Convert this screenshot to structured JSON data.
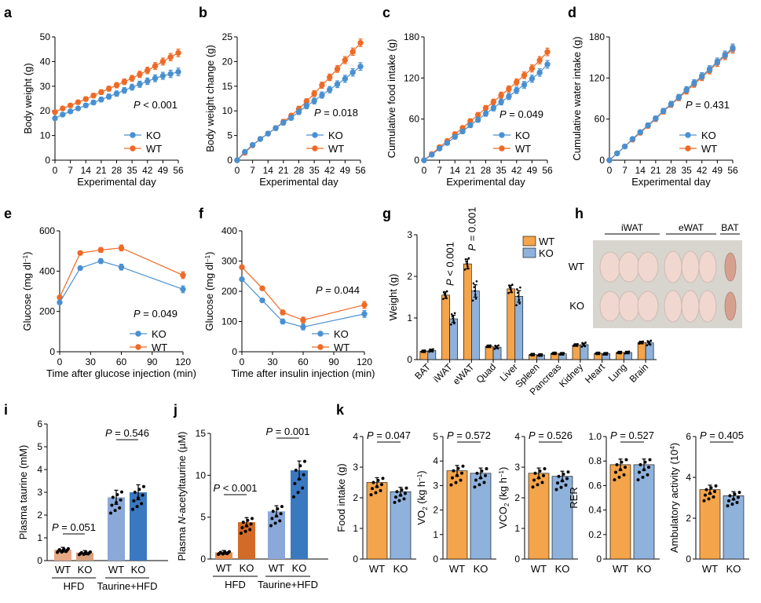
{
  "colors": {
    "ko": "#4a90d0",
    "wt": "#ee6a26",
    "wt_bar": "#f4a44a",
    "ko_bar": "#8fb2dc",
    "hfd_wt": "#e8a986",
    "hfd_ko": "#d9a07d",
    "tau_wt": "#8aa8d8",
    "tau_ko": "#3a78c0",
    "nacet_wt": "#e88c4a",
    "nacet_ko": "#d26a28",
    "photo_bg": "#d8d5cf",
    "tissue": "#f0d7d0",
    "bat": "#d6a08f"
  },
  "legend": {
    "ko": "KO",
    "wt": "WT"
  },
  "chart_data": [
    {
      "id": "a",
      "panel_label": "a",
      "type": "line",
      "xlabel": "Experimental day",
      "ylabel": "Body weight (g)",
      "ylim": [
        0,
        50
      ],
      "yticks": [
        "0",
        "10",
        "20",
        "30",
        "40",
        "50"
      ],
      "xticks": [
        "0",
        "7",
        "14",
        "21",
        "28",
        "35",
        "42",
        "49",
        "56"
      ],
      "xlim": [
        0,
        56
      ],
      "p_prefix": "P",
      "p_rest": " < 0.001",
      "x": [
        0,
        3.5,
        7,
        10.5,
        14,
        17.5,
        21,
        24.5,
        28,
        31.5,
        35,
        38.5,
        42,
        45.5,
        49,
        52.5,
        56
      ],
      "series": [
        {
          "name": "KO",
          "values": [
            17,
            18.5,
            19.8,
            21,
            22.2,
            23.4,
            24.6,
            25.8,
            27,
            28.3,
            29.6,
            30.8,
            32,
            33.2,
            34.2,
            35,
            35.8
          ]
        },
        {
          "name": "WT",
          "values": [
            19.5,
            21,
            22.2,
            23.5,
            24.8,
            26.2,
            27.6,
            29,
            30.4,
            31.8,
            33.2,
            34.8,
            36.4,
            38.2,
            40,
            41.8,
            43.5
          ]
        }
      ]
    },
    {
      "id": "b",
      "panel_label": "b",
      "type": "line",
      "xlabel": "Experimental day",
      "ylabel": "Body weight change (g)",
      "ylim": [
        0,
        25
      ],
      "yticks": [
        "0",
        "5",
        "10",
        "15",
        "20",
        "25"
      ],
      "xticks": [
        "0",
        "7",
        "14",
        "21",
        "28",
        "35",
        "42",
        "49",
        "56"
      ],
      "xlim": [
        0,
        56
      ],
      "p_prefix": "P",
      "p_rest": " = 0.018",
      "x": [
        0,
        3.5,
        7,
        10.5,
        14,
        17.5,
        21,
        24.5,
        28,
        31.5,
        35,
        38.5,
        42,
        45.5,
        49,
        52.5,
        56
      ],
      "series": [
        {
          "name": "KO",
          "values": [
            0,
            1.7,
            3.1,
            4.3,
            5.4,
            6.5,
            7.6,
            8.6,
            9.8,
            11,
            12,
            13.2,
            14.3,
            15.4,
            16.5,
            17.8,
            19
          ]
        },
        {
          "name": "WT",
          "values": [
            0,
            1.5,
            3,
            4.3,
            5.4,
            6.5,
            7.8,
            9,
            10.4,
            11.9,
            13.5,
            15.2,
            16.8,
            18.5,
            20.3,
            22,
            23.8
          ]
        }
      ]
    },
    {
      "id": "c",
      "panel_label": "c",
      "type": "line",
      "xlabel": "Experimental day",
      "ylabel": "Cumulative food intake (g)",
      "ylim": [
        0,
        180
      ],
      "yticks": [
        "0",
        "60",
        "120",
        "180"
      ],
      "xticks": [
        "0",
        "7",
        "14",
        "21",
        "28",
        "35",
        "42",
        "49",
        "56"
      ],
      "xlim": [
        0,
        56
      ],
      "p_prefix": "P",
      "p_rest": " = 0.049",
      "x": [
        0,
        3.5,
        7,
        10.5,
        14,
        17.5,
        21,
        24.5,
        28,
        31.5,
        35,
        38.5,
        42,
        45.5,
        49,
        52.5,
        56
      ],
      "series": [
        {
          "name": "KO",
          "values": [
            0,
            8,
            17,
            25,
            34,
            42,
            51,
            59,
            68,
            76,
            85,
            93,
            102,
            110,
            119,
            128,
            140
          ]
        },
        {
          "name": "WT",
          "values": [
            0,
            9,
            19,
            28,
            38,
            47,
            57,
            66,
            76,
            85,
            95,
            104,
            114,
            124,
            134,
            146,
            158
          ]
        }
      ]
    },
    {
      "id": "d",
      "panel_label": "d",
      "type": "line",
      "xlabel": "Experimental day",
      "ylabel": "Cumulative water intake (g)",
      "ylim": [
        0,
        180
      ],
      "yticks": [
        "0",
        "60",
        "120",
        "180"
      ],
      "xticks": [
        "0",
        "7",
        "14",
        "21",
        "28",
        "35",
        "42",
        "49",
        "56"
      ],
      "xlim": [
        0,
        56
      ],
      "p_prefix": "P",
      "p_rest": " = 0.431",
      "x": [
        0,
        3.5,
        7,
        10.5,
        14,
        17.5,
        21,
        24.5,
        28,
        31.5,
        35,
        38.5,
        42,
        45.5,
        49,
        52.5,
        56
      ],
      "series": [
        {
          "name": "KO",
          "values": [
            0,
            10,
            20,
            31,
            41,
            51,
            61,
            72,
            82,
            92,
            103,
            113,
            123,
            133,
            144,
            154,
            164
          ]
        },
        {
          "name": "WT",
          "values": [
            0,
            10,
            20,
            30,
            40,
            50,
            60,
            71,
            81,
            91,
            101,
            111,
            121,
            131,
            142,
            152,
            162
          ]
        }
      ]
    },
    {
      "id": "e",
      "panel_label": "e",
      "type": "line",
      "xlabel": "Time after glucose injection (min)",
      "ylabel_pre": "Glucose (mg dl",
      "ylabel_sup": "−1",
      "ylabel_post": ")",
      "ylim": [
        0,
        600
      ],
      "yticks": [
        "0",
        "200",
        "400",
        "600"
      ],
      "xticks": [
        "0",
        "30",
        "60",
        "90",
        "120"
      ],
      "xlim": [
        0,
        120
      ],
      "p_prefix": "P",
      "p_rest": " = 0.049",
      "x": [
        0,
        20,
        40,
        60,
        120
      ],
      "series": [
        {
          "name": "KO",
          "values": [
            245,
            415,
            450,
            420,
            310
          ]
        },
        {
          "name": "WT",
          "values": [
            270,
            490,
            505,
            515,
            380
          ]
        }
      ]
    },
    {
      "id": "f",
      "panel_label": "f",
      "type": "line",
      "xlabel": "Time after insulin injection (min)",
      "ylabel_pre": "Glucose (mg dl",
      "ylabel_sup": "−1",
      "ylabel_post": ")",
      "ylim": [
        0,
        400
      ],
      "yticks": [
        "0",
        "100",
        "200",
        "300",
        "400"
      ],
      "xticks": [
        "0",
        "30",
        "60",
        "90",
        "120"
      ],
      "xlim": [
        0,
        120
      ],
      "p_prefix": "P",
      "p_rest": " = 0.044",
      "x": [
        0,
        20,
        40,
        60,
        120
      ],
      "series": [
        {
          "name": "KO",
          "values": [
            240,
            170,
            100,
            82,
            125
          ]
        },
        {
          "name": "WT",
          "values": [
            280,
            210,
            130,
            105,
            155
          ]
        }
      ]
    },
    {
      "id": "g",
      "panel_label": "g",
      "type": "bar",
      "ylabel": "Weight (g)",
      "ylim": [
        0,
        3
      ],
      "yticks": [
        "0",
        "1",
        "2",
        "3"
      ],
      "categories": [
        "BAT",
        "iWAT",
        "eWAT",
        "Quad",
        "Liver",
        "Spleen",
        "Pancreas",
        "Kidney",
        "Heart",
        "Lung",
        "Brain"
      ],
      "series": [
        {
          "name": "WT",
          "values": [
            0.2,
            1.55,
            2.3,
            0.32,
            1.7,
            0.12,
            0.15,
            0.35,
            0.15,
            0.17,
            0.41
          ]
        },
        {
          "name": "KO",
          "values": [
            0.22,
            0.98,
            1.65,
            0.3,
            1.52,
            0.11,
            0.14,
            0.36,
            0.14,
            0.17,
            0.4
          ]
        }
      ],
      "annotations": [
        {
          "category": "iWAT",
          "p_prefix": "P",
          "p_rest": " < 0.001"
        },
        {
          "category": "eWAT",
          "p_prefix": "P",
          "p_rest": " = 0.001"
        }
      ]
    },
    {
      "id": "i",
      "panel_label": "i",
      "type": "bar",
      "ylabel": "Plasma taurine (mM)",
      "ylim": [
        0,
        6
      ],
      "yticks": [
        "0",
        "1",
        "2",
        "3",
        "4",
        "5",
        "6"
      ],
      "categories": [
        "WT",
        "KO",
        "WT",
        "KO"
      ],
      "values": [
        0.48,
        0.35,
        2.78,
        3.0
      ],
      "group_labels": [
        "HFD",
        "Taurine+HFD"
      ],
      "annotations": [
        {
          "p_prefix": "P",
          "p_rest": " = 0.051"
        },
        {
          "p_prefix": "P",
          "p_rest": " = 0.546"
        }
      ]
    },
    {
      "id": "j",
      "panel_label": "j",
      "type": "bar",
      "ylabel_pre": "Plasma ",
      "ylabel_ital": "N",
      "ylabel_post": "-acetyltaurine (µM)",
      "ylim": [
        0,
        15
      ],
      "yticks": [
        "0",
        "5",
        "10",
        "15"
      ],
      "categories": [
        "WT",
        "KO",
        "WT",
        "KO"
      ],
      "values": [
        0.8,
        4.4,
        5.7,
        10.6
      ],
      "group_labels": [
        "HFD",
        "Taurine+HFD"
      ],
      "annotations": [
        {
          "p_prefix": "P",
          "p_rest": " < 0.001"
        },
        {
          "p_prefix": "P",
          "p_rest": " = 0.001"
        }
      ]
    },
    {
      "id": "k1",
      "panel_label": "k",
      "type": "bar",
      "ylabel": "Food intake (g)",
      "ylim": [
        0,
        4
      ],
      "yticks": [
        "0",
        "1",
        "2",
        "3",
        "4"
      ],
      "categories": [
        "WT",
        "KO"
      ],
      "values": [
        2.5,
        2.2
      ],
      "p_prefix": "P",
      "p_rest": " = 0.047"
    },
    {
      "id": "k2",
      "type": "bar",
      "ylabel_pre": "VO",
      "ylabel_sub": "2",
      "ylabel_post": " (kg h",
      "ylabel_sup": "−1",
      "ylabel_end": ")",
      "ylim": [
        0,
        5
      ],
      "yticks": [
        "0",
        "1",
        "2",
        "3",
        "4",
        "5"
      ],
      "categories": [
        "WT",
        "KO"
      ],
      "values": [
        3.6,
        3.5
      ],
      "p_prefix": "P",
      "p_rest": " = 0.572"
    },
    {
      "id": "k3",
      "type": "bar",
      "ylabel_pre": "VCO",
      "ylabel_sub": "2",
      "ylabel_post": " (kg h",
      "ylabel_sup": "−1",
      "ylabel_end": ")",
      "ylim": [
        0,
        4
      ],
      "yticks": [
        "0",
        "1",
        "2",
        "3",
        "4"
      ],
      "categories": [
        "WT",
        "KO"
      ],
      "values": [
        2.8,
        2.7
      ],
      "p_prefix": "P",
      "p_rest": " = 0.526"
    },
    {
      "id": "k4",
      "type": "bar",
      "ylabel": "RER",
      "ylim": [
        0,
        1.0
      ],
      "yticks": [
        "0",
        "0.2",
        "0.4",
        "0.6",
        "0.8",
        "1.0"
      ],
      "categories": [
        "WT",
        "KO"
      ],
      "values": [
        0.77,
        0.77
      ],
      "p_prefix": "P",
      "p_rest": " = 0.527"
    },
    {
      "id": "k5",
      "type": "bar",
      "ylabel_pre": "Ambulatory activity (10",
      "ylabel_sup": "4",
      "ylabel_post": ")",
      "ylim": [
        0,
        6
      ],
      "yticks": [
        "0",
        "2",
        "4",
        "6"
      ],
      "categories": [
        "WT",
        "KO"
      ],
      "values": [
        3.4,
        3.1
      ],
      "p_prefix": "P",
      "p_rest": " = 0.405"
    }
  ],
  "photo": {
    "panel_label": "h",
    "headers": [
      "iWAT",
      "eWAT",
      "BAT"
    ],
    "rows": [
      "WT",
      "KO"
    ]
  }
}
